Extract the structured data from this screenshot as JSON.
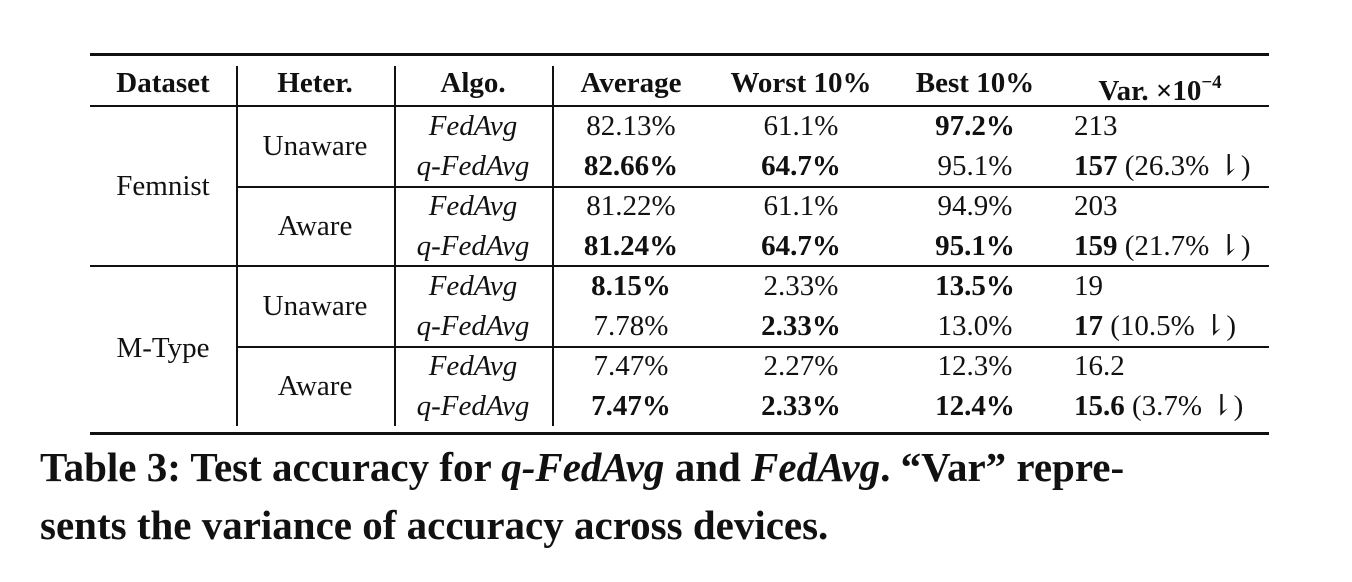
{
  "table": {
    "headers": {
      "dataset": "Dataset",
      "heter": "Heter.",
      "algo": "Algo.",
      "average": "Average",
      "worst": "Worst 10%",
      "best": "Best 10%",
      "var_main": "Var. ×10",
      "var_exp": "−4"
    },
    "groups": [
      {
        "dataset": "Femnist",
        "subgroups": [
          {
            "heter": "Unaware",
            "rows": [
              {
                "algo": "FedAvg",
                "average": "82.13%",
                "average_bold": false,
                "worst": "61.1%",
                "worst_bold": false,
                "best": "97.2%",
                "best_bold": true,
                "var": "213",
                "var_bold": false,
                "var_note": ""
              },
              {
                "algo": "q-FedAvg",
                "average": "82.66%",
                "average_bold": true,
                "worst": "64.7%",
                "worst_bold": true,
                "best": "95.1%",
                "best_bold": false,
                "var": "157",
                "var_bold": true,
                "var_note": " (26.3% ⇂)"
              }
            ]
          },
          {
            "heter": "Aware",
            "rows": [
              {
                "algo": "FedAvg",
                "average": "81.22%",
                "average_bold": false,
                "worst": "61.1%",
                "worst_bold": false,
                "best": "94.9%",
                "best_bold": false,
                "var": "203",
                "var_bold": false,
                "var_note": ""
              },
              {
                "algo": "q-FedAvg",
                "average": "81.24%",
                "average_bold": true,
                "worst": "64.7%",
                "worst_bold": true,
                "best": "95.1%",
                "best_bold": true,
                "var": "159",
                "var_bold": true,
                "var_note": " (21.7% ⇂)"
              }
            ]
          }
        ]
      },
      {
        "dataset": "M-Type",
        "subgroups": [
          {
            "heter": "Unaware",
            "rows": [
              {
                "algo": "FedAvg",
                "average": "8.15%",
                "average_bold": true,
                "worst": "2.33%",
                "worst_bold": false,
                "best": "13.5%",
                "best_bold": true,
                "var": "19",
                "var_bold": false,
                "var_note": ""
              },
              {
                "algo": "q-FedAvg",
                "average": "7.78%",
                "average_bold": false,
                "worst": "2.33%",
                "worst_bold": true,
                "best": "13.0%",
                "best_bold": false,
                "var": "17",
                "var_bold": true,
                "var_note": " (10.5% ⇂)"
              }
            ]
          },
          {
            "heter": "Aware",
            "rows": [
              {
                "algo": "FedAvg",
                "average": "7.47%",
                "average_bold": false,
                "worst": "2.27%",
                "worst_bold": false,
                "best": "12.3%",
                "best_bold": false,
                "var": "16.2",
                "var_bold": false,
                "var_note": ""
              },
              {
                "algo": "q-FedAvg",
                "average": "7.47%",
                "average_bold": true,
                "worst": "2.33%",
                "worst_bold": true,
                "best": "12.4%",
                "best_bold": true,
                "var": "15.6",
                "var_bold": true,
                "var_note": " (3.7% ⇂)"
              }
            ]
          }
        ]
      }
    ]
  },
  "caption": {
    "part1": "Table 3: Test accuracy for ",
    "qfedavg": "q-FedAvg",
    "part2": " and ",
    "fedavg": "FedAvg",
    "part3": ". “Var” repre-",
    "line2": "sents the variance of accuracy across devices."
  }
}
